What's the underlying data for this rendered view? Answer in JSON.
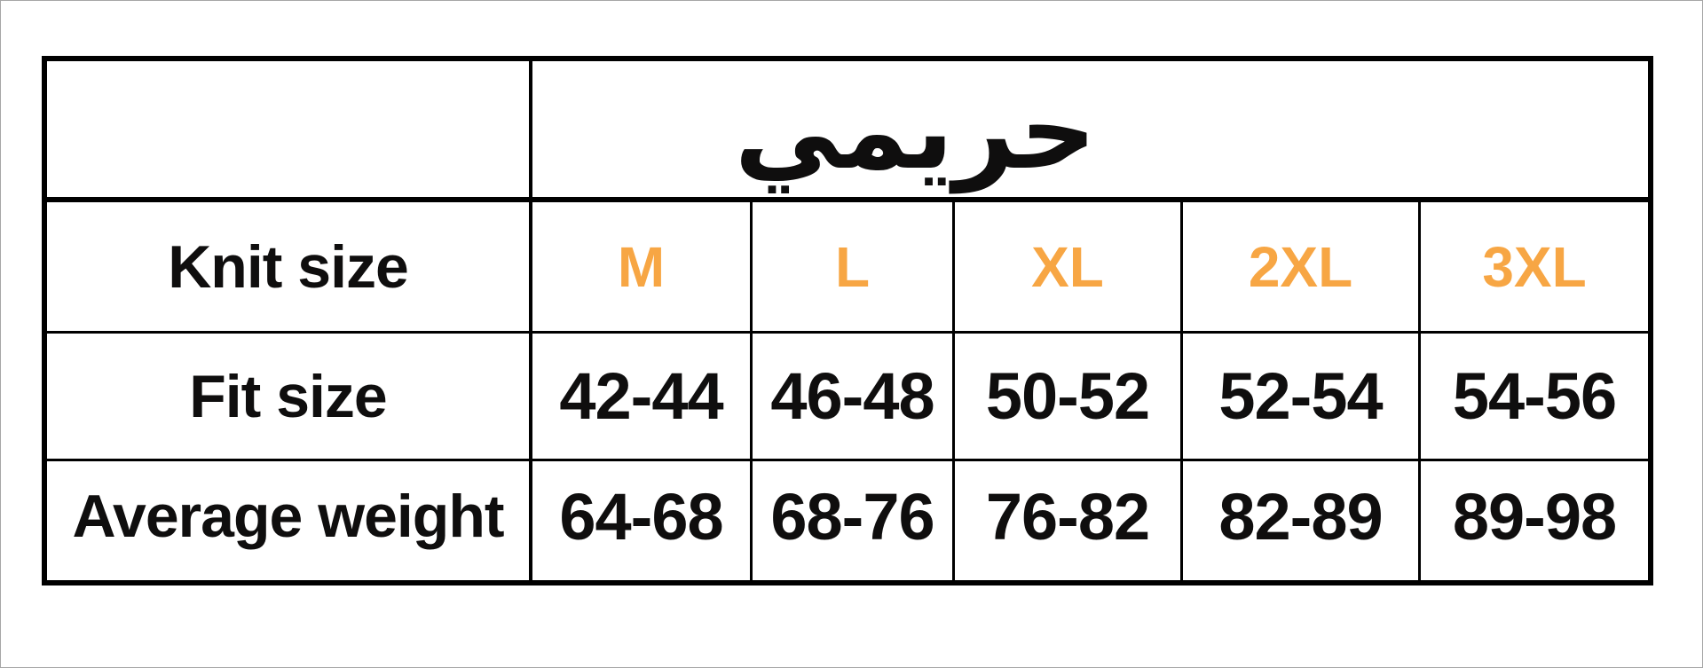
{
  "page": {
    "background_color": "#ffffff",
    "frame_color": "#a6a6a6"
  },
  "size_chart": {
    "category_header": "حريمي",
    "row_headers": [
      "Knit size",
      "Fit size",
      "Average weight"
    ],
    "knit_sizes": [
      "M",
      "L",
      "XL",
      "2XL",
      "3XL"
    ],
    "fit_sizes": [
      "42-44",
      "46-48",
      "50-52",
      "52-54",
      "54-56"
    ],
    "average_weights": [
      "64-68",
      "68-76",
      "76-82",
      "82-89",
      "89-98"
    ],
    "colors": {
      "size_accent_orange": "#F7A644",
      "text_black": "#0F0E0E",
      "border_black": "#000000"
    }
  }
}
